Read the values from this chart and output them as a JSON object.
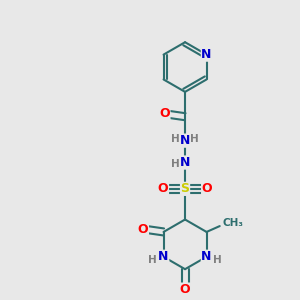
{
  "background_color": "#e8e8e8",
  "bond_color": "#2d6e6e",
  "bond_width": 1.5,
  "atom_colors": {
    "N": "#0000cc",
    "O": "#ff0000",
    "S": "#cccc00",
    "C": "#2d6e6e",
    "H": "#808080"
  },
  "font_size_atoms": 9,
  "font_size_H": 7.5,
  "figsize": [
    3.0,
    3.0
  ],
  "dpi": 100,
  "xlim": [
    0,
    10
  ],
  "ylim": [
    0,
    10
  ]
}
